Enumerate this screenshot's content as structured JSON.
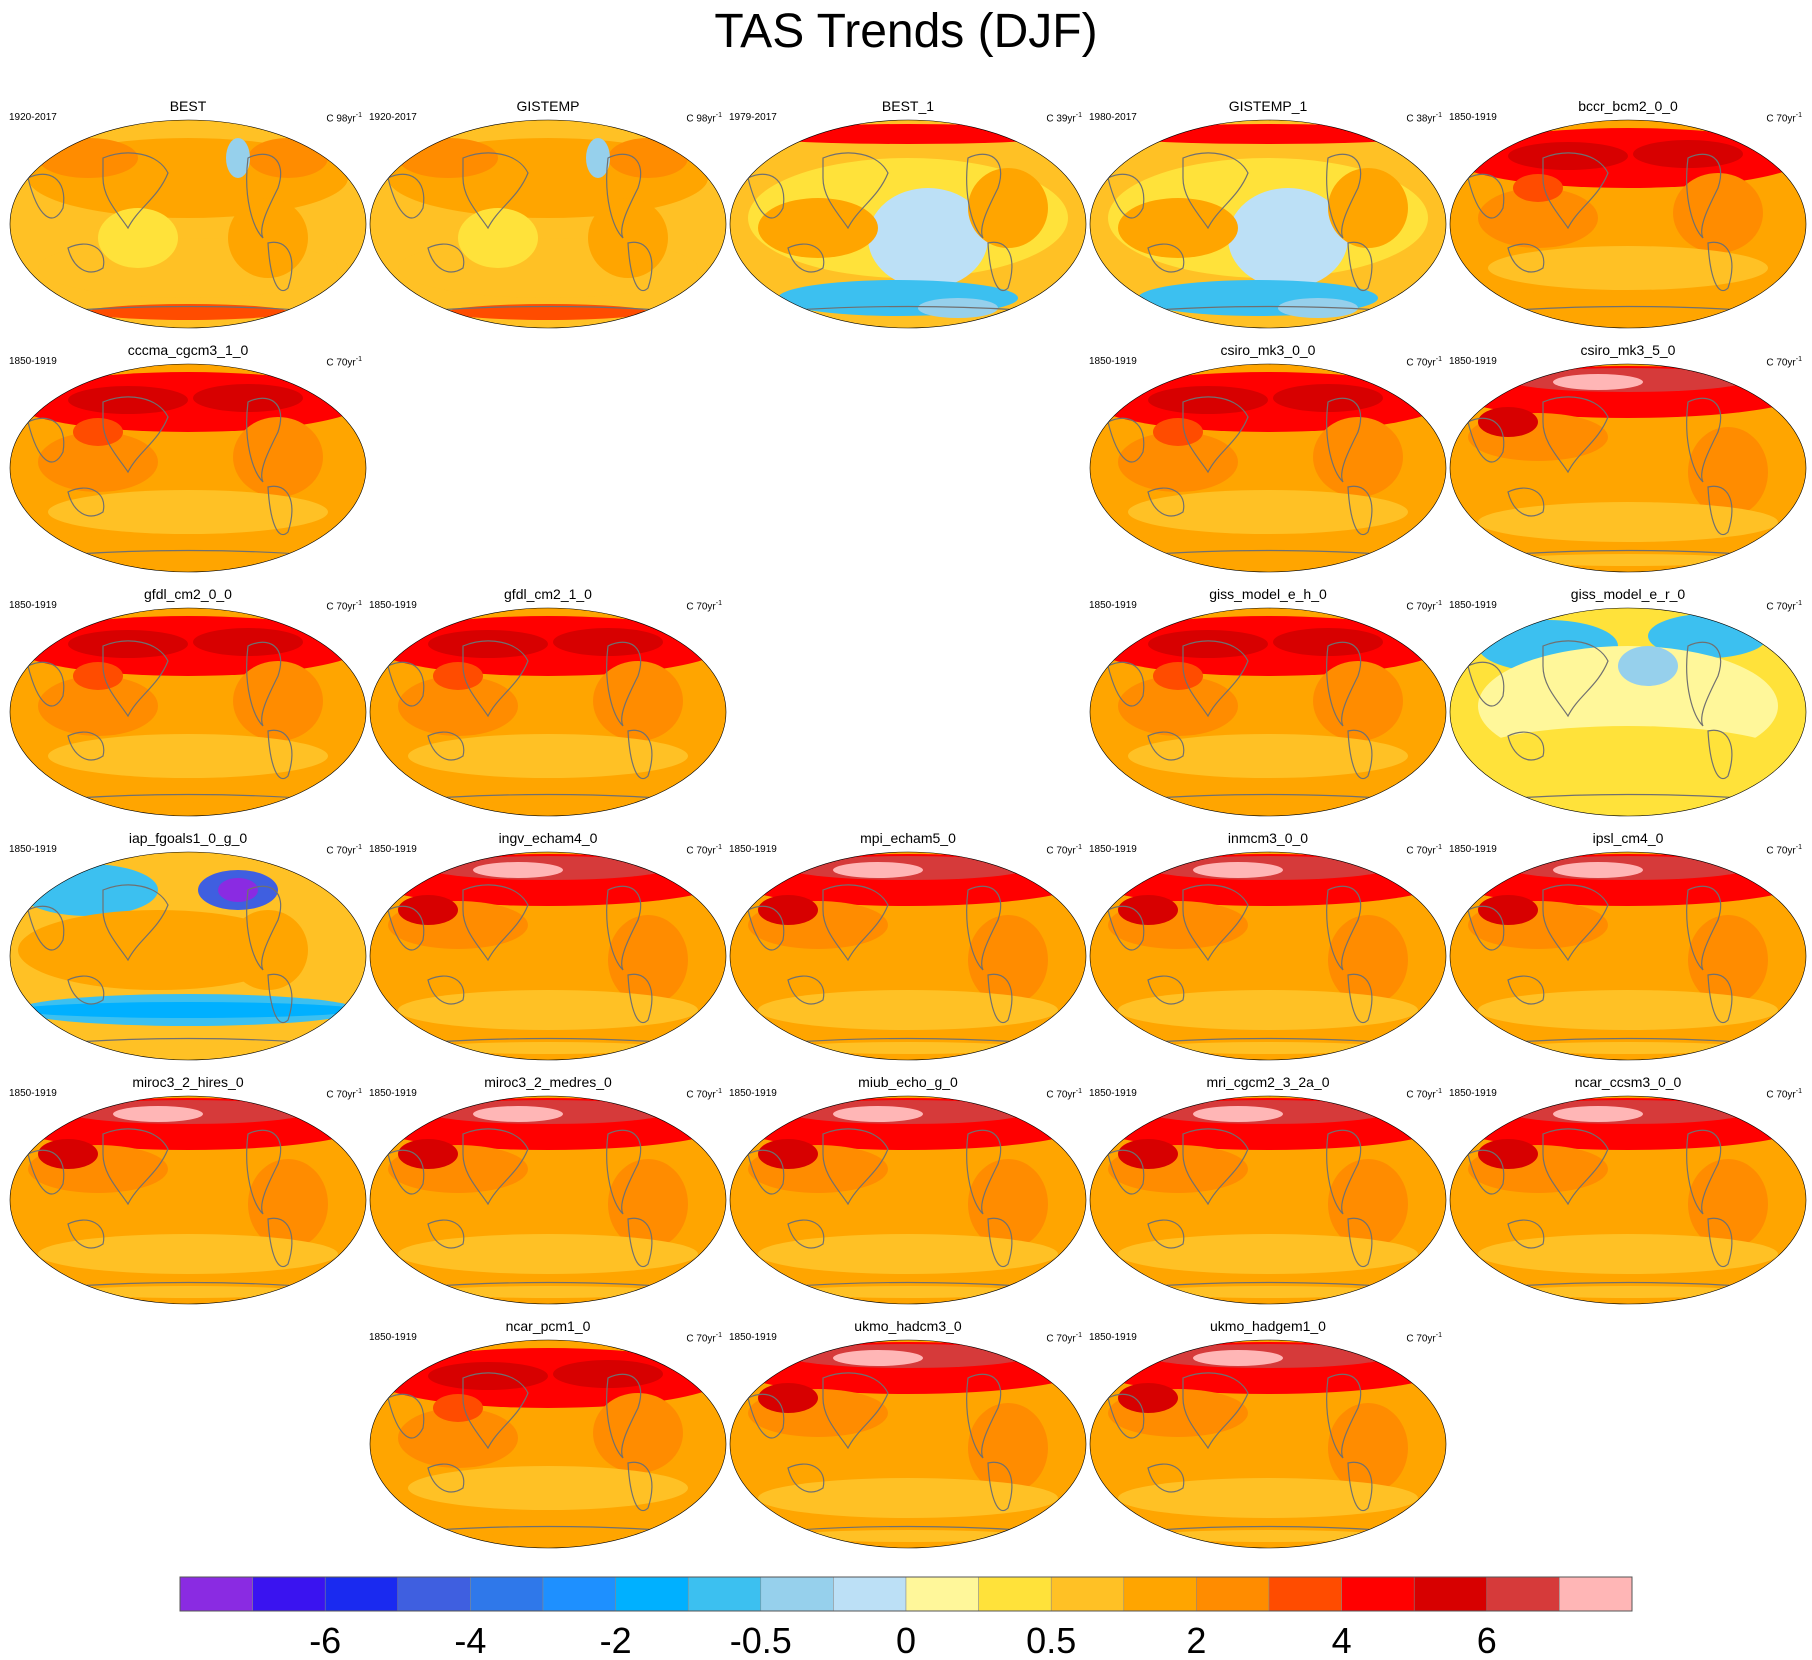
{
  "title": "TAS Trends (DJF)",
  "units_prefix": "C ",
  "units_suffix": "yr",
  "units_exponent": "-1",
  "chart_data": {
    "type": "heatmap",
    "title": "TAS Trends (DJF)",
    "variable": "TAS",
    "season": "DJF",
    "colorbar": {
      "bins": 20,
      "colors": [
        "#8a2be2",
        "#3a13f0",
        "#1a2af0",
        "#3f5fe0",
        "#2f78ea",
        "#1e90ff",
        "#00b0ff",
        "#3cc0f0",
        "#96d0ec",
        "#bce0f6",
        "#fff79a",
        "#ffe23a",
        "#ffc125",
        "#ffa500",
        "#ff8c00",
        "#ff4c00",
        "#ff0000",
        "#d70000",
        "#d63a3a",
        "#ffb6b6"
      ],
      "tick_labels": [
        "-6",
        "-4",
        "-2",
        "-0.5",
        "0",
        "0.5",
        "2",
        "4",
        "6"
      ],
      "tick_bin_index": [
        2,
        4,
        6,
        8,
        10,
        12,
        14,
        16,
        18
      ]
    },
    "panels": [
      {
        "name": "BEST",
        "period": "1920-2017",
        "units_years": "98",
        "pattern": "mixed"
      },
      {
        "name": "GISTEMP",
        "period": "1920-2017",
        "units_years": "98",
        "pattern": "mixed"
      },
      {
        "name": "BEST_1",
        "period": "1979-2017",
        "units_years": "39",
        "pattern": "cool"
      },
      {
        "name": "GISTEMP_1",
        "period": "1980-2017",
        "units_years": "38",
        "pattern": "cool"
      },
      {
        "name": "bccr_bcm2_0_0",
        "period": "1850-1919",
        "units_years": "70",
        "pattern": "warm"
      },
      {
        "name": "cccma_cgcm3_1_0",
        "period": "1850-1919",
        "units_years": "70",
        "pattern": "warm"
      },
      null,
      null,
      {
        "name": "csiro_mk3_0_0",
        "period": "1850-1919",
        "units_years": "70",
        "pattern": "warm"
      },
      {
        "name": "csiro_mk3_5_0",
        "period": "1850-1919",
        "units_years": "70",
        "pattern": "hot"
      },
      {
        "name": "gfdl_cm2_0_0",
        "period": "1850-1919",
        "units_years": "70",
        "pattern": "warm"
      },
      {
        "name": "gfdl_cm2_1_0",
        "period": "1850-1919",
        "units_years": "70",
        "pattern": "warm"
      },
      null,
      {
        "name": "giss_model_e_h_0",
        "period": "1850-1919",
        "units_years": "70",
        "pattern": "warm"
      },
      {
        "name": "giss_model_e_r_0",
        "period": "1850-1919",
        "units_years": "70",
        "pattern": "pale"
      },
      {
        "name": "iap_fgoals1_0_g_0",
        "period": "1850-1919",
        "units_years": "70",
        "pattern": "coldring"
      },
      {
        "name": "ingv_echam4_0",
        "period": "1850-1919",
        "units_years": "70",
        "pattern": "hot"
      },
      {
        "name": "mpi_echam5_0",
        "period": "1850-1919",
        "units_years": "70",
        "pattern": "hot"
      },
      {
        "name": "inmcm3_0_0",
        "period": "1850-1919",
        "units_years": "70",
        "pattern": "hot"
      },
      {
        "name": "ipsl_cm4_0",
        "period": "1850-1919",
        "units_years": "70",
        "pattern": "hot"
      },
      {
        "name": "miroc3_2_hires_0",
        "period": "1850-1919",
        "units_years": "70",
        "pattern": "hot"
      },
      {
        "name": "miroc3_2_medres_0",
        "period": "1850-1919",
        "units_years": "70",
        "pattern": "hot"
      },
      {
        "name": "miub_echo_g_0",
        "period": "1850-1919",
        "units_years": "70",
        "pattern": "hot"
      },
      {
        "name": "mri_cgcm2_3_2a_0",
        "period": "1850-1919",
        "units_years": "70",
        "pattern": "hot"
      },
      {
        "name": "ncar_ccsm3_0_0",
        "period": "1850-1919",
        "units_years": "70",
        "pattern": "hot"
      },
      null,
      {
        "name": "ncar_pcm1_0",
        "period": "1850-1919",
        "units_years": "70",
        "pattern": "warm"
      },
      {
        "name": "ukmo_hadcm3_0",
        "period": "1850-1919",
        "units_years": "70",
        "pattern": "hot"
      },
      {
        "name": "ukmo_hadgem1_0",
        "period": "1850-1919",
        "units_years": "70",
        "pattern": "hot"
      },
      null
    ]
  }
}
